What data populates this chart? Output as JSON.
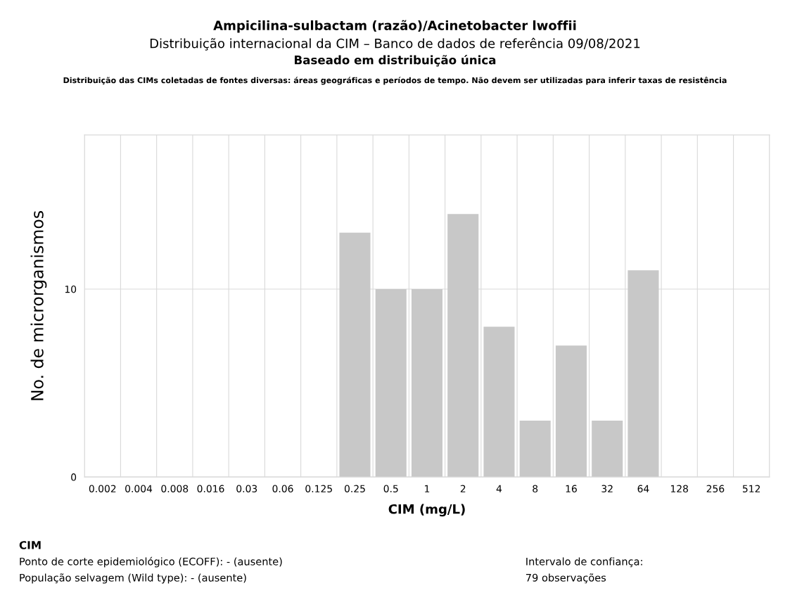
{
  "chart_data": {
    "type": "bar",
    "title": "Ampicilina-sulbactam (razão)/Acinetobacter lwoffii",
    "subtitle": "Distribuição internacional da CIM – Banco de dados de referência 09/08/2021",
    "xlabel": "CIM (mg/L)",
    "ylabel": "No. de microrganismos",
    "categories": [
      "0.002",
      "0.004",
      "0.008",
      "0.016",
      "0.03",
      "0.06",
      "0.125",
      "0.25",
      "0.5",
      "1",
      "2",
      "4",
      "8",
      "16",
      "32",
      "64",
      "128",
      "256",
      "512"
    ],
    "values": [
      0,
      0,
      0,
      0,
      0,
      0,
      0,
      13,
      10,
      10,
      14,
      8,
      3,
      7,
      3,
      11,
      0,
      0,
      0
    ],
    "color": "#c8c8c8",
    "ylim": [
      0,
      18.2
    ],
    "yticks": [
      0,
      10
    ],
    "grid": true,
    "annotations": [
      "Baseado em distribuição única",
      "Distribuição das CIMs coletadas de fontes diversas: áreas geográficas e períodos de tempo. Não devem ser utilizadas para inferir taxas de resistência",
      "CIM",
      "Ponto de corte epidemiológico (ECOFF): - (ausente)",
      "População selvagem (Wild type): - (ausente)",
      "Intervalo de confiança:",
      "79 observações"
    ]
  }
}
